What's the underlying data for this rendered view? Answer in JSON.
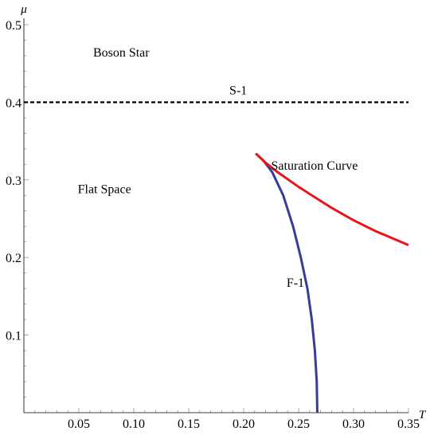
{
  "chart_data": {
    "type": "line",
    "xlabel": "T",
    "ylabel": "μ",
    "xlim": [
      0,
      0.35
    ],
    "ylim": [
      0,
      0.5
    ],
    "x_ticks": [
      0.05,
      0.1,
      0.15,
      0.2,
      0.25,
      0.3,
      0.35
    ],
    "x_tick_labels": [
      "0.05",
      "0.10",
      "0.15",
      "0.20",
      "0.25",
      "0.30",
      "0.35"
    ],
    "y_ticks": [
      0.1,
      0.2,
      0.3,
      0.4,
      0.5
    ],
    "y_tick_labels": [
      "0.1",
      "0.2",
      "0.3",
      "0.4",
      "0.5"
    ],
    "grid": false,
    "series": [
      {
        "name": "S-1",
        "color": "#000000",
        "dashed": true,
        "x": [
          0.0,
          0.35
        ],
        "y": [
          0.4,
          0.4
        ]
      },
      {
        "name": "F-1",
        "color": "#3a3a99",
        "dashed": false,
        "x": [
          0.267,
          0.2665,
          0.2648,
          0.262,
          0.258,
          0.252,
          0.245,
          0.236,
          0.226,
          0.218,
          0.211
        ],
        "y": [
          0.0,
          0.04,
          0.08,
          0.12,
          0.16,
          0.2,
          0.24,
          0.28,
          0.31,
          0.325,
          0.334
        ]
      },
      {
        "name": "Saturation Curve",
        "color": "#e8161a",
        "dashed": false,
        "x": [
          0.211,
          0.22,
          0.23,
          0.24,
          0.25,
          0.26,
          0.27,
          0.28,
          0.29,
          0.3,
          0.31,
          0.32,
          0.33,
          0.34,
          0.35
        ],
        "y": [
          0.334,
          0.322,
          0.311,
          0.301,
          0.291,
          0.282,
          0.273,
          0.264,
          0.256,
          0.248,
          0.241,
          0.234,
          0.228,
          0.222,
          0.216
        ]
      }
    ],
    "annotations": [
      {
        "text": "Boson Star",
        "x": 0.063,
        "y": 0.459
      },
      {
        "text": "S-1",
        "x": 0.187,
        "y": 0.41
      },
      {
        "text": "Flat Space",
        "x": 0.049,
        "y": 0.283
      },
      {
        "text": "Saturation Curve",
        "x": 0.225,
        "y": 0.313
      },
      {
        "text": "F-1",
        "x": 0.239,
        "y": 0.162
      }
    ]
  }
}
